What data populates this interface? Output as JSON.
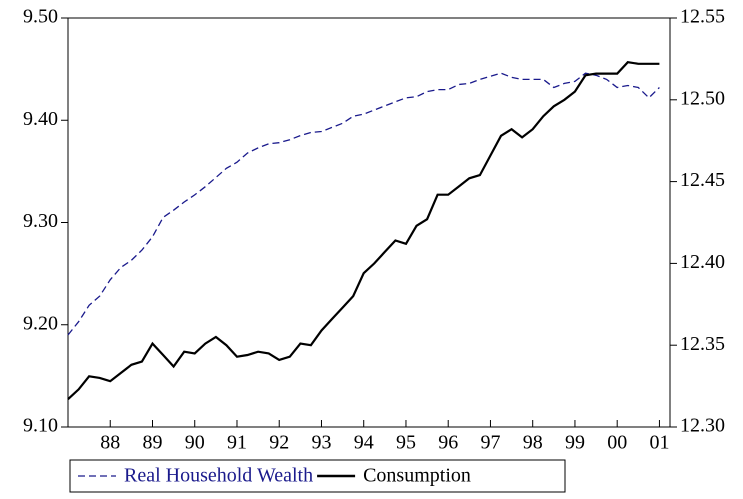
{
  "chart_data": {
    "type": "line",
    "x": [
      1987.0,
      1987.25,
      1987.5,
      1987.75,
      1988.0,
      1988.25,
      1988.5,
      1988.75,
      1989.0,
      1989.25,
      1989.5,
      1989.75,
      1990.0,
      1990.25,
      1990.5,
      1990.75,
      1991.0,
      1991.25,
      1991.5,
      1991.75,
      1992.0,
      1992.25,
      1992.5,
      1992.75,
      1993.0,
      1993.25,
      1993.5,
      1993.75,
      1994.0,
      1994.25,
      1994.5,
      1994.75,
      1995.0,
      1995.25,
      1995.5,
      1995.75,
      1996.0,
      1996.25,
      1996.5,
      1996.75,
      1997.0,
      1997.25,
      1997.5,
      1997.75,
      1998.0,
      1998.25,
      1998.5,
      1998.75,
      1999.0,
      1999.25,
      1999.5,
      1999.75,
      2000.0,
      2000.25,
      2000.5,
      2000.75,
      2001.0
    ],
    "series": [
      {
        "name": "Real Household Wealth",
        "color": "#1a1a8c",
        "dashed": true,
        "values": [
          9.19,
          9.203,
          9.219,
          9.228,
          9.244,
          9.256,
          9.263,
          9.273,
          9.286,
          9.305,
          9.312,
          9.32,
          9.327,
          9.335,
          9.344,
          9.353,
          9.359,
          9.368,
          9.373,
          9.377,
          9.378,
          9.381,
          9.385,
          9.388,
          9.389,
          9.393,
          9.397,
          9.404,
          9.406,
          9.41,
          9.414,
          9.418,
          9.422,
          9.423,
          9.428,
          9.43,
          9.43,
          9.435,
          9.436,
          9.44,
          9.443,
          9.446,
          9.442,
          9.44,
          9.44,
          9.44,
          9.432,
          9.436,
          9.438,
          9.446,
          9.444,
          9.44,
          9.432,
          9.434,
          9.432,
          9.422,
          9.432
        ]
      },
      {
        "name": "Consumption",
        "color": "#000000",
        "dashed": false,
        "axis": "y2",
        "values": [
          12.317,
          12.323,
          12.331,
          12.33,
          12.328,
          12.333,
          12.338,
          12.34,
          12.351,
          12.344,
          12.337,
          12.346,
          12.345,
          12.351,
          12.355,
          12.35,
          12.343,
          12.344,
          12.346,
          12.345,
          12.341,
          12.343,
          12.351,
          12.35,
          12.359,
          12.366,
          12.373,
          12.38,
          12.394,
          12.4,
          12.407,
          12.414,
          12.412,
          12.423,
          12.427,
          12.442,
          12.442,
          12.447,
          12.452,
          12.454,
          12.466,
          12.478,
          12.482,
          12.477,
          12.482,
          12.49,
          12.496,
          12.5,
          12.505,
          12.515,
          12.516,
          12.516,
          12.516,
          12.523,
          12.522,
          12.522,
          12.522
        ]
      }
    ],
    "xlim": [
      1987.0,
      2001.25
    ],
    "xticks": [
      {
        "value": 1988,
        "label": "88"
      },
      {
        "value": 1989,
        "label": "89"
      },
      {
        "value": 1990,
        "label": "90"
      },
      {
        "value": 1991,
        "label": "91"
      },
      {
        "value": 1992,
        "label": "92"
      },
      {
        "value": 1993,
        "label": "93"
      },
      {
        "value": 1994,
        "label": "94"
      },
      {
        "value": 1995,
        "label": "95"
      },
      {
        "value": 1996,
        "label": "96"
      },
      {
        "value": 1997,
        "label": "97"
      },
      {
        "value": 1998,
        "label": "98"
      },
      {
        "value": 1999,
        "label": "99"
      },
      {
        "value": 2000,
        "label": "00"
      },
      {
        "value": 2001,
        "label": "01"
      }
    ],
    "ylim": [
      9.1,
      9.5
    ],
    "yticks": [
      {
        "value": 9.1,
        "label": "9.10"
      },
      {
        "value": 9.2,
        "label": "9.20"
      },
      {
        "value": 9.3,
        "label": "9.30"
      },
      {
        "value": 9.4,
        "label": "9.40"
      },
      {
        "value": 9.5,
        "label": "9.50"
      }
    ],
    "y2lim": [
      12.3,
      12.55
    ],
    "y2ticks": [
      {
        "value": 12.3,
        "label": "12.30"
      },
      {
        "value": 12.35,
        "label": "12.35"
      },
      {
        "value": 12.4,
        "label": "12.40"
      },
      {
        "value": 12.45,
        "label": "12.45"
      },
      {
        "value": 12.5,
        "label": "12.50"
      },
      {
        "value": 12.55,
        "label": "12.55"
      }
    ],
    "legend": "bottom"
  }
}
